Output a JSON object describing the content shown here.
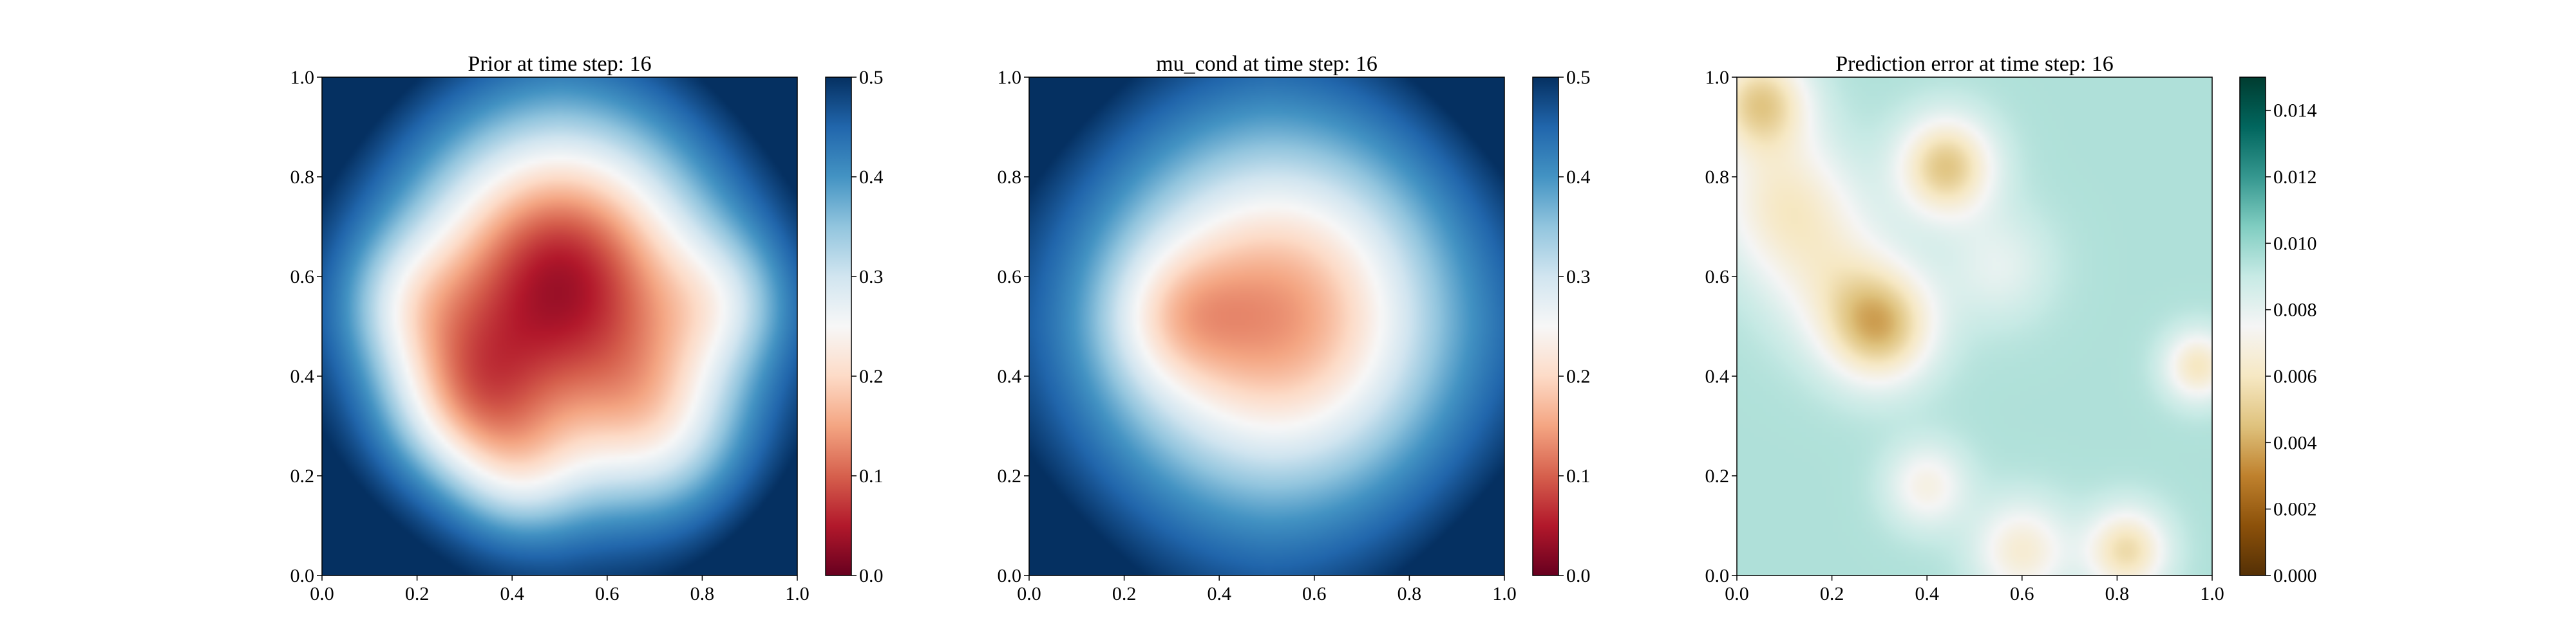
{
  "chart_data": [
    {
      "type": "heatmap",
      "title": "Prior at time step: 16",
      "colormap": "RdBu",
      "colors": [
        "#67001f",
        "#b2182b",
        "#d6604d",
        "#f4a582",
        "#fddbc7",
        "#f7f7f7",
        "#d1e5f0",
        "#92c5de",
        "#4393c3",
        "#2166ac",
        "#053061"
      ],
      "xlim": [
        0.0,
        1.0
      ],
      "ylim": [
        0.0,
        1.0
      ],
      "clim": [
        0.0,
        0.5
      ],
      "xticks": [
        "0.0",
        "0.2",
        "0.4",
        "0.6",
        "0.8",
        "1.0"
      ],
      "yticks": [
        "0.0",
        "0.2",
        "0.4",
        "0.6",
        "0.8",
        "1.0"
      ],
      "cticks": [
        "0.0",
        "0.1",
        "0.2",
        "0.3",
        "0.4",
        "0.5"
      ],
      "blobs": [
        {
          "x": 0.5,
          "y": 0.6,
          "amp": 0.45,
          "sigma": 0.22
        },
        {
          "x": 0.3,
          "y": 0.35,
          "amp": 0.2,
          "sigma": 0.12
        },
        {
          "x": 0.7,
          "y": 0.3,
          "amp": 0.18,
          "sigma": 0.14
        },
        {
          "x": 0.42,
          "y": 0.2,
          "amp": 0.12,
          "sigma": 0.1
        },
        {
          "x": 0.85,
          "y": 0.55,
          "amp": 0.1,
          "sigma": 0.1
        },
        {
          "x": 0.18,
          "y": 0.55,
          "amp": 0.1,
          "sigma": 0.1
        }
      ]
    },
    {
      "type": "heatmap",
      "title": "mu_cond at time step: 16",
      "colormap": "RdBu",
      "colors": [
        "#67001f",
        "#b2182b",
        "#d6604d",
        "#f4a582",
        "#fddbc7",
        "#f7f7f7",
        "#d1e5f0",
        "#92c5de",
        "#4393c3",
        "#2166ac",
        "#053061"
      ],
      "xlim": [
        0.0,
        1.0
      ],
      "ylim": [
        0.0,
        1.0
      ],
      "clim": [
        0.0,
        0.5
      ],
      "xticks": [
        "0.0",
        "0.2",
        "0.4",
        "0.6",
        "0.8",
        "1.0"
      ],
      "yticks": [
        "0.0",
        "0.2",
        "0.4",
        "0.6",
        "0.8",
        "1.0"
      ],
      "cticks": [
        "0.0",
        "0.1",
        "0.2",
        "0.3",
        "0.4",
        "0.5"
      ],
      "blobs": [
        {
          "x": 0.52,
          "y": 0.52,
          "amp": 0.36,
          "sigma": 0.26
        },
        {
          "x": 0.3,
          "y": 0.52,
          "amp": 0.08,
          "sigma": 0.1
        }
      ]
    },
    {
      "type": "heatmap",
      "title": "Prediction error at time step: 16",
      "colormap": "BrBG",
      "colors": [
        "#543005",
        "#8c510a",
        "#bf812d",
        "#dfc27d",
        "#f6e8c3",
        "#f5f5f5",
        "#c7eae5",
        "#80cdc1",
        "#35978f",
        "#01665e",
        "#003c30"
      ],
      "xlim": [
        0.0,
        1.0
      ],
      "ylim": [
        0.0,
        1.0
      ],
      "clim": [
        0.0,
        0.015
      ],
      "xticks": [
        "0.0",
        "0.2",
        "0.4",
        "0.6",
        "0.8",
        "1.0"
      ],
      "yticks": [
        "0.0",
        "0.2",
        "0.4",
        "0.6",
        "0.8",
        "1.0"
      ],
      "cticks": [
        "0.000",
        "0.002",
        "0.004",
        "0.006",
        "0.008",
        "0.010",
        "0.012",
        "0.014"
      ],
      "base": 0.0095,
      "blobs": [
        {
          "x": 0.05,
          "y": 0.95,
          "amp": 0.0045,
          "sigma": 0.07
        },
        {
          "x": 0.1,
          "y": 0.75,
          "amp": 0.003,
          "sigma": 0.1
        },
        {
          "x": 0.44,
          "y": 0.82,
          "amp": 0.0048,
          "sigma": 0.07
        },
        {
          "x": 0.3,
          "y": 0.5,
          "amp": 0.005,
          "sigma": 0.08
        },
        {
          "x": 0.2,
          "y": 0.6,
          "amp": 0.002,
          "sigma": 0.1
        },
        {
          "x": 0.55,
          "y": 0.62,
          "amp": 0.0015,
          "sigma": 0.08
        },
        {
          "x": 0.4,
          "y": 0.18,
          "amp": 0.0025,
          "sigma": 0.06
        },
        {
          "x": 0.6,
          "y": 0.05,
          "amp": 0.003,
          "sigma": 0.07
        },
        {
          "x": 0.82,
          "y": 0.05,
          "amp": 0.004,
          "sigma": 0.06
        },
        {
          "x": 0.97,
          "y": 0.42,
          "amp": 0.0035,
          "sigma": 0.05
        }
      ]
    }
  ]
}
